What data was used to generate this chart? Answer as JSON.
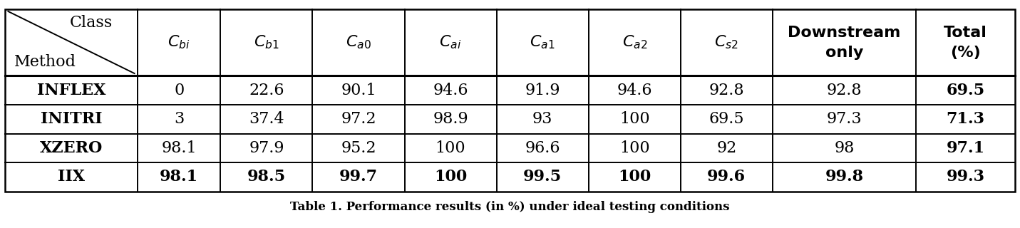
{
  "title": "Table 1. Performance results (in %) under ideal testing conditions",
  "col_headers_math": [
    "$C_{bi}$",
    "$C_{b1}$",
    "$C_{a0}$",
    "$C_{ai}$",
    "$C_{a1}$",
    "$C_{a2}$",
    "$C_{s2}$",
    "Downstream\nonly",
    "Total\n(%)"
  ],
  "row_labels": [
    "INFLEX",
    "INITRI",
    "XZERO",
    "IIX"
  ],
  "row_bold": [
    true,
    true,
    true,
    true
  ],
  "data": [
    [
      "0",
      "22.6",
      "90.1",
      "94.6",
      "91.9",
      "94.6",
      "92.8",
      "92.8",
      "69.5"
    ],
    [
      "3",
      "37.4",
      "97.2",
      "98.9",
      "93",
      "100",
      "69.5",
      "97.3",
      "71.3"
    ],
    [
      "98.1",
      "97.9",
      "95.2",
      "100",
      "96.6",
      "100",
      "92",
      "98",
      "97.1"
    ],
    [
      "98.1",
      "98.5",
      "99.7",
      "100",
      "99.5",
      "100",
      "99.6",
      "99.8",
      "99.3"
    ]
  ],
  "data_bold": [
    [
      false,
      false,
      false,
      false,
      false,
      false,
      false,
      false,
      true
    ],
    [
      false,
      false,
      false,
      false,
      false,
      false,
      false,
      false,
      true
    ],
    [
      false,
      false,
      false,
      false,
      false,
      false,
      false,
      false,
      true
    ],
    [
      true,
      true,
      true,
      true,
      true,
      true,
      true,
      true,
      true
    ]
  ],
  "bg_color": "#ffffff",
  "border_color": "#000000",
  "text_color": "#000000",
  "header_fontsize": 16,
  "data_fontsize": 16,
  "caption_fontsize": 12
}
